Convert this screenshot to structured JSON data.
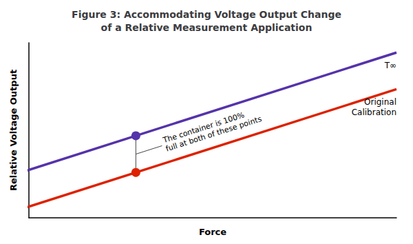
{
  "chart_data": {
    "type": "line",
    "title": "Figure 3: Accommodating Voltage Output Change\nof a Relative Measurement Application",
    "xlabel": "Force",
    "ylabel": "Relative Voltage Output",
    "xlim": [
      -0.02,
      1.08
    ],
    "ylim": [
      0.0,
      1.05
    ],
    "tick_labels": false,
    "grid": false,
    "series": [
      {
        "name": "Original\nCalibration",
        "color": "#DD2200",
        "x": [
          -0.08,
          1.08
        ],
        "values": [
          0.0288,
          0.7712
        ]
      },
      {
        "name": "T∞",
        "color": "#5533AA",
        "x": [
          -0.08,
          1.08
        ],
        "values": [
          0.2488,
          0.9912
        ]
      }
    ],
    "points": [
      {
        "x": 0.3,
        "y": 0.272,
        "color": "#DD2200"
      },
      {
        "x": 0.3,
        "y": 0.492,
        "color": "#5533AA"
      }
    ],
    "annotation": "The container is 100%\nfull at both of these points"
  }
}
